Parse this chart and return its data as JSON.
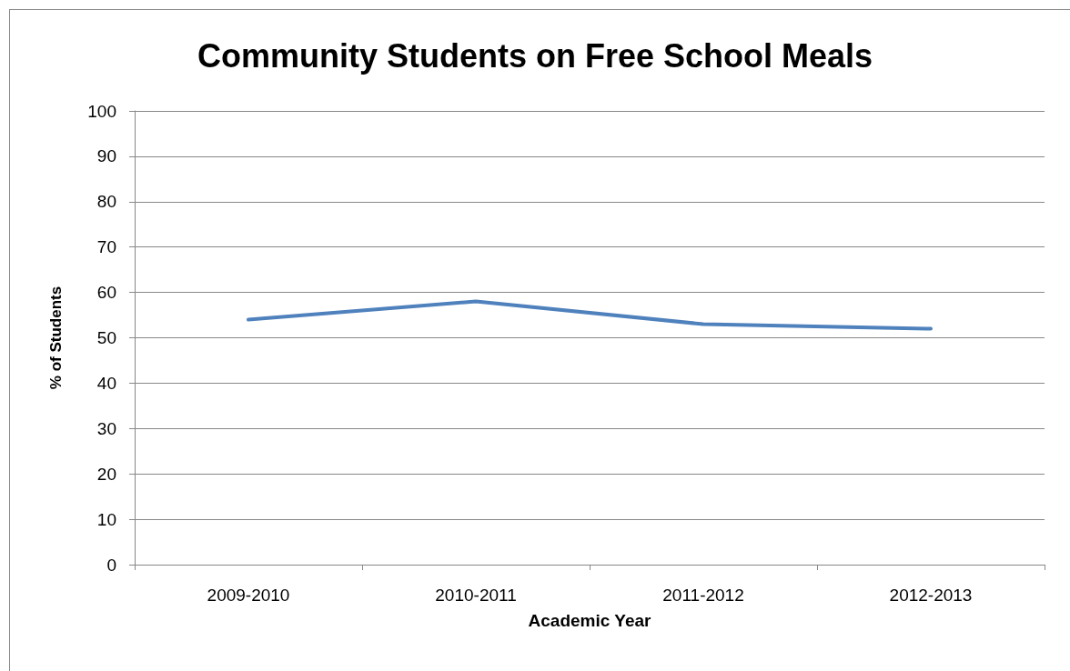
{
  "chart_data": {
    "type": "line",
    "title": "Community Students on Free School Meals",
    "xlabel": "Academic Year",
    "ylabel": "% of Students",
    "categories": [
      "2009-2010",
      "2010-2011",
      "2011-2012",
      "2012-2013"
    ],
    "series": [
      {
        "color": "#4f81bd",
        "values": [
          54,
          58,
          53,
          52
        ]
      }
    ],
    "ylim": [
      0,
      100
    ],
    "yticks": [
      0,
      10,
      20,
      30,
      40,
      50,
      60,
      70,
      80,
      90,
      100
    ],
    "grid": "y",
    "marker": "none",
    "line_style": "solid"
  }
}
